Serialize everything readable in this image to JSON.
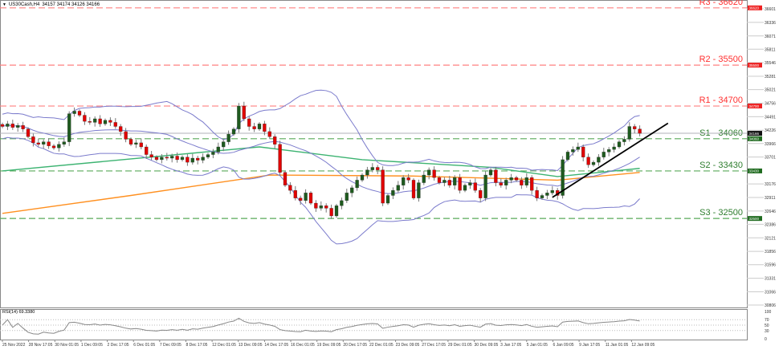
{
  "header": {
    "symbol": "US30Cash,H4",
    "ohlc": "34157 34174 34126 34166"
  },
  "colors": {
    "bull": "#1e5a1e",
    "bear": "#e00000",
    "resistance": "#ff8080",
    "support": "#5aaa5a",
    "bollinger": "#7b7bcc",
    "ma_green": "#3cb371",
    "ma_orange": "#ff9020",
    "trendline": "#000000",
    "price_line": "#b0b0b8"
  },
  "chart_data": [
    {
      "type": "candlestick",
      "title": "US30Cash,H4",
      "ylim": [
        30806,
        36700
      ],
      "y_ticks": [
        36601,
        36336,
        36071,
        35811,
        35546,
        35281,
        35021,
        34756,
        34491,
        34226,
        33966,
        33701,
        33176,
        32911,
        32646,
        32386,
        32121,
        31856,
        31596,
        31331,
        31066,
        30806
      ],
      "x_ticks": [
        "25 Nov 2022",
        "28 Nov 17:05",
        "30 Nov 01:05",
        "1 Dec 09:05",
        "2 Dec 17:05",
        "6 Dec 01:05",
        "7 Dec 09:05",
        "8 Dec 17:05",
        "12 Dec 01:05",
        "13 Dec 09:05",
        "14 Dec 17:05",
        "16 Dec 01:05",
        "19 Dec 09:05",
        "20 Dec 17:05",
        "22 Dec 01:05",
        "23 Dec 09:05",
        "27 Dec 17:05",
        "29 Dec 01:05",
        "30 Dec 09:05",
        "3 Jan 17:05",
        "5 Jan 01:05",
        "6 Jan 09:05",
        "9 Jan 17:05",
        "11 Jan 01:05",
        "12 Jan 09:05"
      ],
      "closes": [
        34300,
        34350,
        34280,
        34320,
        34250,
        34100,
        33980,
        33950,
        34000,
        33920,
        33880,
        33950,
        34000,
        34550,
        34600,
        34520,
        34400,
        34380,
        34450,
        34350,
        34420,
        34380,
        34300,
        34200,
        34050,
        33950,
        33980,
        33900,
        33750,
        33700,
        33650,
        33700,
        33680,
        33720,
        33650,
        33700,
        33600,
        33680,
        33640,
        33700,
        33750,
        33800,
        33900,
        34000,
        34150,
        34250,
        34700,
        34450,
        34300,
        34250,
        34350,
        34200,
        34100,
        33950,
        33400,
        33150,
        33050,
        32900,
        32850,
        33000,
        32800,
        32700,
        32750,
        32700,
        32550,
        32750,
        32850,
        33000,
        33100,
        33250,
        33350,
        33450,
        33500,
        33450,
        32800,
        32950,
        33050,
        33150,
        33300,
        33250,
        32900,
        33200,
        33350,
        33450,
        33300,
        33200,
        33250,
        33150,
        33300,
        33050,
        33150,
        33200,
        33050,
        32900,
        33350,
        33450,
        33200,
        33150,
        33250,
        33300,
        33250,
        33150,
        33300,
        33050,
        32900,
        32950,
        33000,
        33050,
        32950,
        33650,
        33800,
        33850,
        33900,
        33700,
        33550,
        33600,
        33700,
        33800,
        33850,
        33900,
        34000,
        34050,
        34300,
        34250,
        34166
      ],
      "last_price": 34166,
      "levels": [
        {
          "label": "R3 - 36620",
          "value": 36620,
          "kind": "resistance",
          "tag": "36620"
        },
        {
          "label": "R2 - 35500",
          "value": 35500,
          "kind": "resistance",
          "tag": "35500"
        },
        {
          "label": "R1 - 34700",
          "value": 34700,
          "kind": "resistance",
          "tag": "34700"
        },
        {
          "label": "S1 - 34060",
          "value": 34060,
          "kind": "support",
          "tag": "34060"
        },
        {
          "label": "S2 - 33430",
          "value": 33430,
          "kind": "support",
          "tag": "33430"
        },
        {
          "label": "S3 - 32500",
          "value": 32500,
          "kind": "support",
          "tag": "32500"
        }
      ],
      "trendline": {
        "from": {
          "bar": 107,
          "price": 32913
        },
        "to": {
          "bar": 129.5,
          "price": 34364
        }
      },
      "ma_green": [
        [
          0,
          33430
        ],
        [
          50,
          33900
        ],
        [
          70,
          33650
        ],
        [
          95,
          33500
        ],
        [
          108,
          33320
        ],
        [
          124,
          33480
        ]
      ],
      "ma_orange": [
        [
          0,
          32600
        ],
        [
          25,
          32950
        ],
        [
          52,
          33350
        ],
        [
          80,
          33330
        ],
        [
          108,
          33250
        ],
        [
          124,
          33400
        ]
      ],
      "bollinger": {
        "period": 20,
        "deviations": 2
      }
    },
    {
      "type": "line",
      "title": "RSI(14) 69.3380",
      "ylim": [
        0,
        100
      ],
      "y_ticks": [
        100,
        70,
        50,
        30,
        0
      ],
      "period": 14
    }
  ]
}
